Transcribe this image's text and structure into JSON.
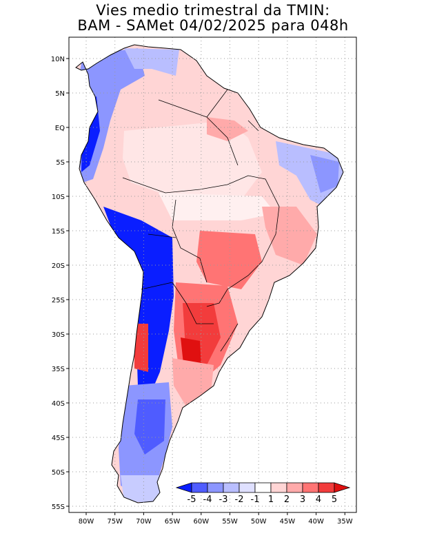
{
  "title": {
    "line1": "Vies medio trimestral da TMIN:",
    "line2": "BAM - SAMet 04/02/2025  para 048h"
  },
  "map": {
    "lat_ticks": [
      "10N",
      "5N",
      "EQ",
      "5S",
      "10S",
      "15S",
      "20S",
      "25S",
      "30S",
      "35S",
      "40S",
      "45S",
      "50S",
      "55S"
    ],
    "lon_ticks": [
      "80W",
      "75W",
      "70W",
      "65W",
      "60W",
      "55W",
      "50W",
      "45W",
      "40W",
      "35W"
    ],
    "grid": "dotted",
    "extent": {
      "lon": [
        -83,
        -34
      ],
      "lat": [
        -56,
        13
      ]
    }
  },
  "colorbar": {
    "labels": [
      "-5",
      "-4",
      "-3",
      "-2",
      "-1",
      "1",
      "2",
      "3",
      "4",
      "5"
    ],
    "colors": [
      "#0a1eff",
      "#4f5cff",
      "#8c96ff",
      "#b9beff",
      "#dfe0ff",
      "#ffffff",
      "#ffd5d5",
      "#ffaaaa",
      "#ff7474",
      "#f23c3c",
      "#e01010"
    ]
  },
  "colors": {
    "frame": "#000000",
    "gridline": "#9a9a9a",
    "cold_strong": "#0a1eff",
    "cold_mid": "#8c96ff",
    "cold_light": "#c8ccff",
    "warm_light": "#ffd5d5",
    "warm_mid": "#ff9a9a",
    "warm_strong": "#ff4848"
  }
}
